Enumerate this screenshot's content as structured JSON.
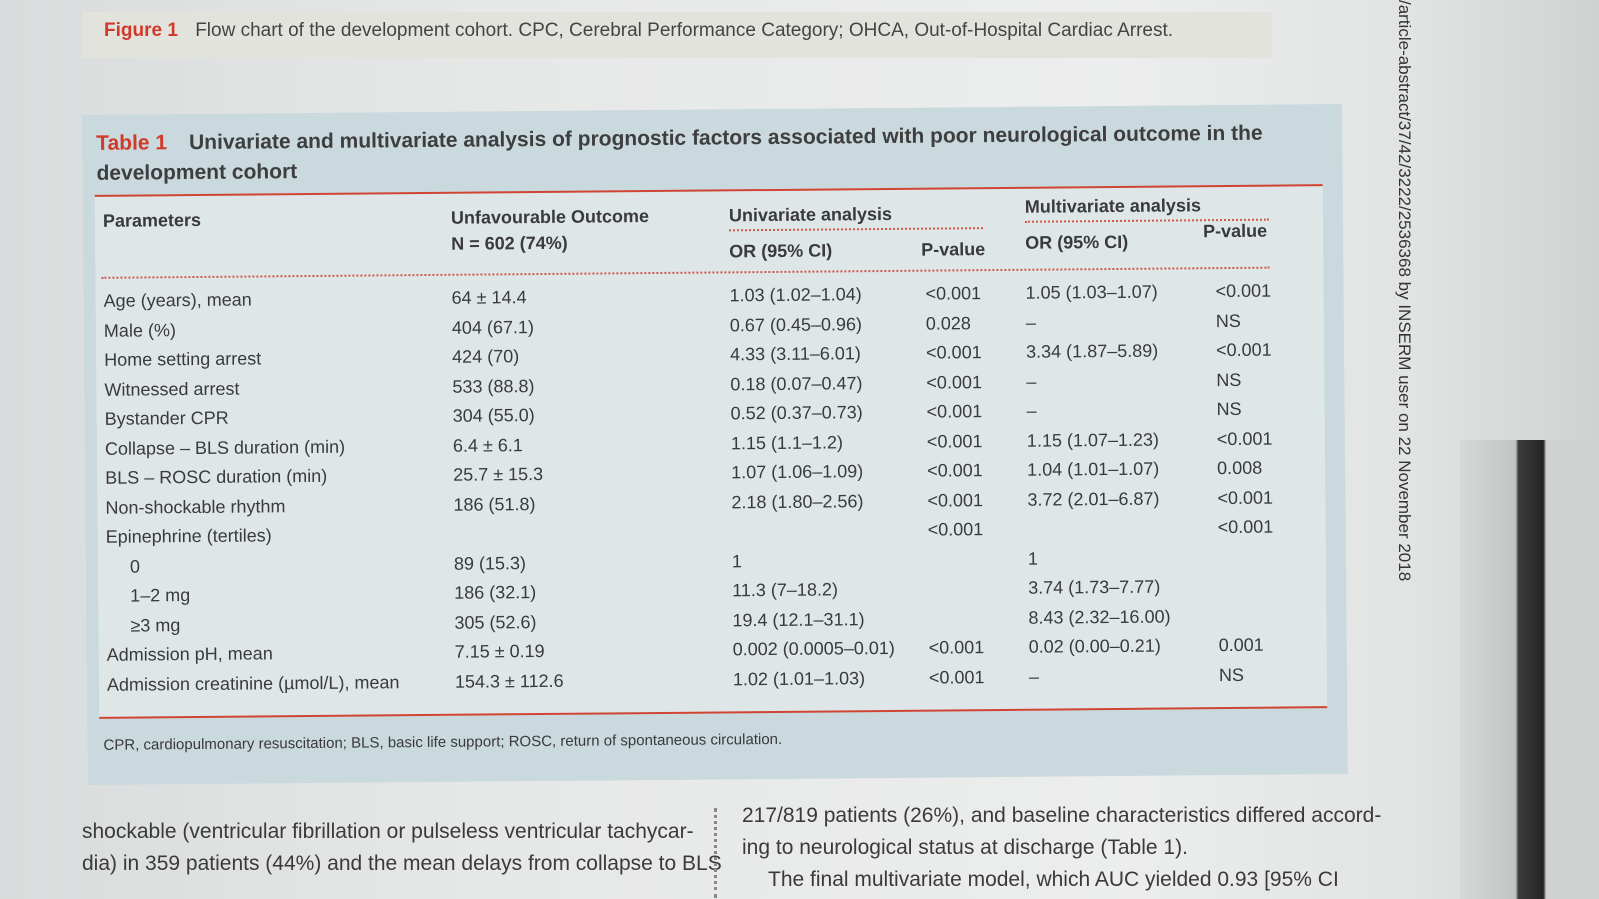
{
  "figure_caption": {
    "label": "Figure 1",
    "text": "Flow chart of the development cohort. CPC, Cerebral Performance Category; OHCA, Out-of-Hospital Cardiac Arrest."
  },
  "table": {
    "label": "Table 1",
    "title": "Univariate and multivariate analysis of prognostic factors associated with poor neurological outcome in the development cohort",
    "headers": {
      "parameters": "Parameters",
      "unfavourable": "Unfavourable Outcome",
      "unfavourable_n": "N = 602 (74%)",
      "univariate": "Univariate analysis",
      "multivariate": "Multivariate analysis",
      "uni_or": "OR (95% CI)",
      "uni_p": "P-value",
      "multi_or": "OR (95% CI)",
      "multi_p": "P-value"
    },
    "rows": [
      {
        "param": "Age (years), mean",
        "unf": "64 ± 14.4",
        "uor": "1.03 (1.02–1.04)",
        "up": "<0.001",
        "mor": "1.05 (1.03–1.07)",
        "mp": "<0.001"
      },
      {
        "param": "Male (%)",
        "unf": "404 (67.1)",
        "uor": "0.67 (0.45–0.96)",
        "up": "0.028",
        "mor": "–",
        "mp": "NS"
      },
      {
        "param": "Home setting arrest",
        "unf": "424 (70)",
        "uor": "4.33 (3.11–6.01)",
        "up": "<0.001",
        "mor": "3.34 (1.87–5.89)",
        "mp": "<0.001"
      },
      {
        "param": "Witnessed arrest",
        "unf": "533 (88.8)",
        "uor": "0.18 (0.07–0.47)",
        "up": "<0.001",
        "mor": "–",
        "mp": "NS"
      },
      {
        "param": "Bystander CPR",
        "unf": "304 (55.0)",
        "uor": "0.52 (0.37–0.73)",
        "up": "<0.001",
        "mor": "–",
        "mp": "NS"
      },
      {
        "param": "Collapse – BLS duration (min)",
        "unf": "6.4 ± 6.1",
        "uor": "1.15 (1.1–1.2)",
        "up": "<0.001",
        "mor": "1.15 (1.07–1.23)",
        "mp": "<0.001"
      },
      {
        "param": "BLS – ROSC duration (min)",
        "unf": "25.7 ± 15.3",
        "uor": "1.07 (1.06–1.09)",
        "up": "<0.001",
        "mor": "1.04 (1.01–1.07)",
        "mp": "0.008"
      },
      {
        "param": "Non-shockable rhythm",
        "unf": "186 (51.8)",
        "uor": "2.18 (1.80–2.56)",
        "up": "<0.001",
        "mor": "3.72 (2.01–6.87)",
        "mp": "<0.001"
      },
      {
        "param": "Epinephrine (tertiles)",
        "unf": "",
        "uor": "",
        "up": "<0.001",
        "mor": "",
        "mp": "<0.001"
      },
      {
        "param": "0",
        "unf": "89 (15.3)",
        "uor": "1",
        "up": "",
        "mor": "1",
        "mp": ""
      },
      {
        "param": "1–2 mg",
        "unf": "186 (32.1)",
        "uor": "11.3 (7–18.2)",
        "up": "",
        "mor": "3.74 (1.73–7.77)",
        "mp": ""
      },
      {
        "param": "≥3 mg",
        "unf": "305 (52.6)",
        "uor": "19.4 (12.1–31.1)",
        "up": "",
        "mor": "8.43 (2.32–16.00)",
        "mp": ""
      },
      {
        "param": "Admission pH, mean",
        "unf": "7.15 ± 0.19",
        "uor": "0.002 (0.0005–0.01)",
        "up": "<0.001",
        "mor": "0.02 (0.00–0.21)",
        "mp": "0.001"
      },
      {
        "param": "Admission creatinine (µmol/L), mean",
        "unf": "154.3 ± 112.6",
        "uor": "1.02 (1.01–1.03)",
        "up": "<0.001",
        "mor": "–",
        "mp": "NS"
      }
    ],
    "footnote": "CPR, cardiopulmonary resuscitation; BLS, basic life support; ROSC, return of spontaneous circulation."
  },
  "body_text": {
    "left_line1": "shockable (ventricular fibrillation or pulseless ventricular tachycar-",
    "left_line2": "dia) in 359 patients (44%) and the mean delays from collapse to BLS",
    "right_line1": "217/819 patients (26%), and baseline characteristics differed accord-",
    "right_line2": "ing to neurological status at discharge (Table 1).",
    "right_line3": "The final multivariate model, which AUC yielded 0.93 [95% CI"
  },
  "side_watermark": "/article-abstract/37/42/3222/2536368 by INSERM user on 22 November 2018"
}
